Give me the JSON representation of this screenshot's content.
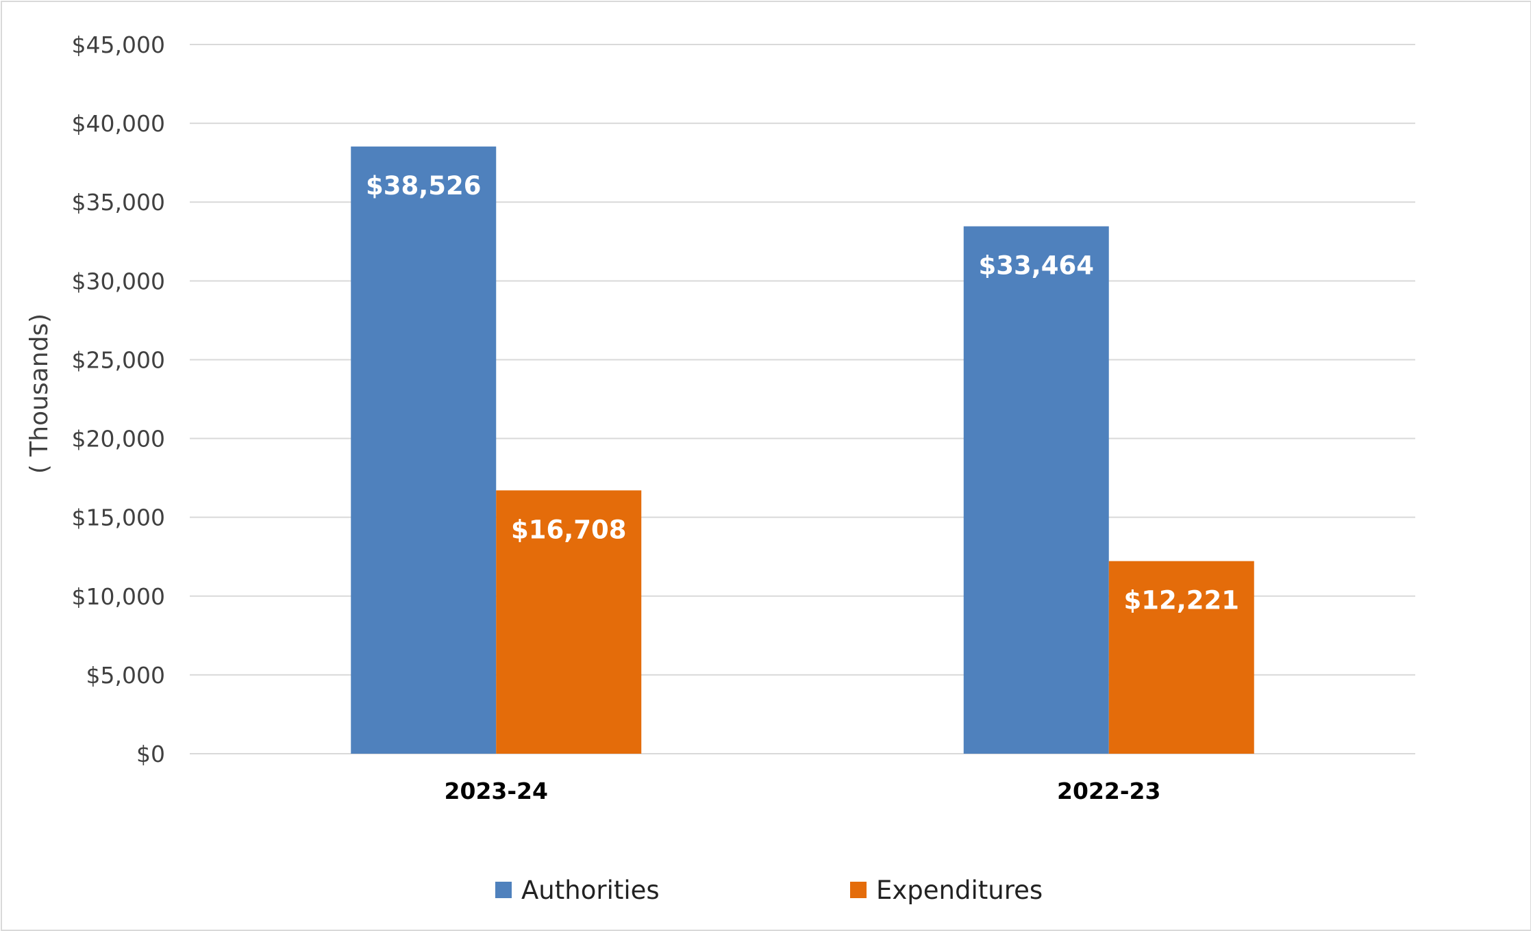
{
  "chart_data": {
    "type": "bar",
    "title": "",
    "xlabel": "",
    "ylabel": "( Thousands)",
    "ylim": [
      0,
      45000
    ],
    "ytick_step": 5000,
    "ytick_labels": [
      "$0",
      "$5,000",
      "$10,000",
      "$15,000",
      "$20,000",
      "$25,000",
      "$30,000",
      "$35,000",
      "$40,000",
      "$45,000"
    ],
    "categories": [
      "2023-24",
      "2022-23"
    ],
    "series": [
      {
        "name": "Authorities",
        "color": "#4f81bd",
        "values": [
          38526,
          33464
        ],
        "labels": [
          "$38,526",
          "$33,464"
        ]
      },
      {
        "name": "Expenditures",
        "color": "#e46c0a",
        "values": [
          16708,
          12221
        ],
        "labels": [
          "$16,708",
          "$12,221"
        ]
      }
    ],
    "grid": true,
    "legend_position": "bottom"
  }
}
